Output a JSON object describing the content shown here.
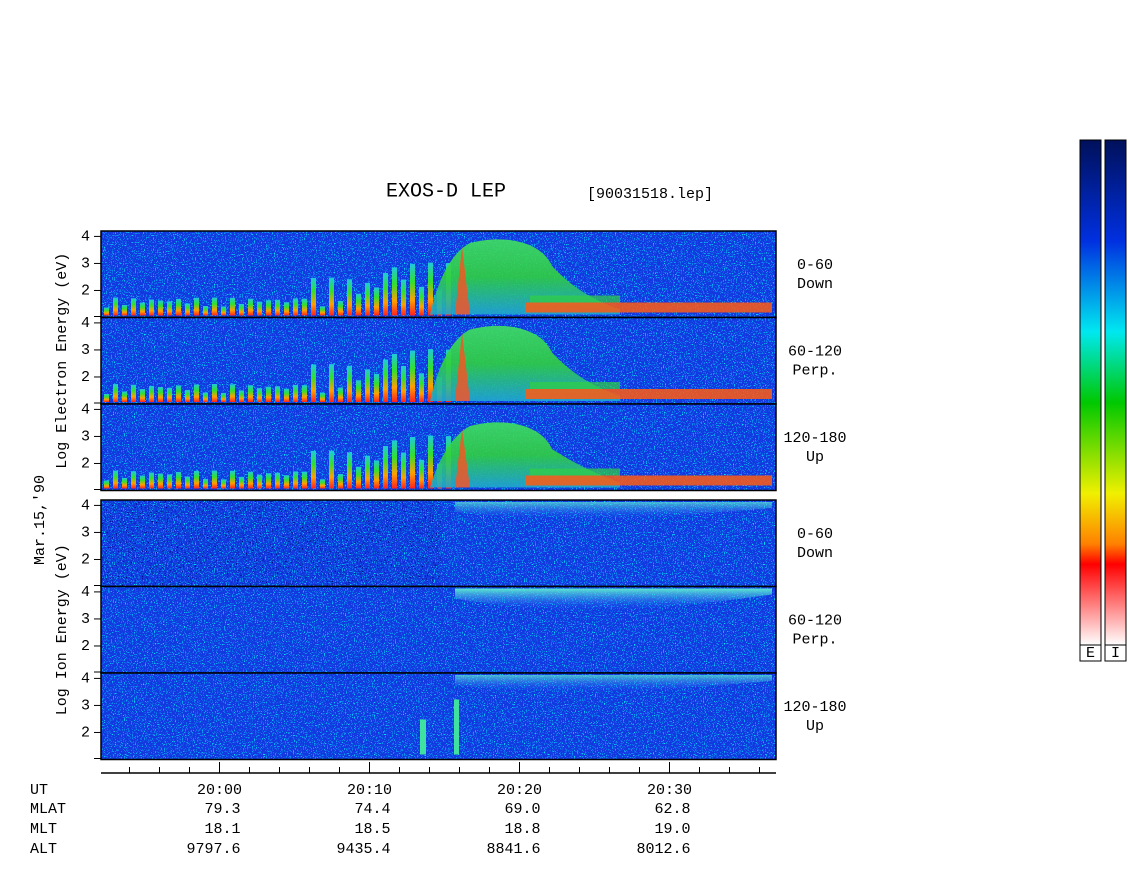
{
  "title": "EXOS-D LEP",
  "file": "[90031518.lep]",
  "date": "Mar.15,'90",
  "groups": [
    {
      "ylabel": "Log Electron Energy (eV)",
      "panels": [
        {
          "range": "0-60",
          "direction": "Down"
        },
        {
          "range": "60-120",
          "direction": "Perp."
        },
        {
          "range": "120-180",
          "direction": "Up"
        }
      ]
    },
    {
      "ylabel": "Log Ion Energy (eV)",
      "panels": [
        {
          "range": "0-60",
          "direction": "Down"
        },
        {
          "range": "60-120",
          "direction": "Perp."
        },
        {
          "range": "120-180",
          "direction": "Up"
        }
      ]
    }
  ],
  "ylim": [
    1,
    4.2
  ],
  "yticks": [
    2,
    3,
    4
  ],
  "time_axis": {
    "xlim": [
      -7.9,
      37.1
    ],
    "ticks": [
      0,
      10,
      20,
      30
    ],
    "minor_step": 2,
    "rows": [
      {
        "name": "UT",
        "values": [
          "20:00",
          "20:10",
          "20:20",
          "20:30"
        ]
      },
      {
        "name": "MLAT",
        "values": [
          "79.3",
          "74.4",
          "69.0",
          "62.8"
        ]
      },
      {
        "name": "MLT",
        "values": [
          "18.1",
          "18.5",
          "18.8",
          "19.0"
        ]
      },
      {
        "name": "ALT",
        "values": [
          "9797.6",
          "9435.4",
          "8841.6",
          "8012.6"
        ]
      }
    ]
  },
  "colorbar": {
    "labels": [
      "E",
      "I"
    ]
  }
}
